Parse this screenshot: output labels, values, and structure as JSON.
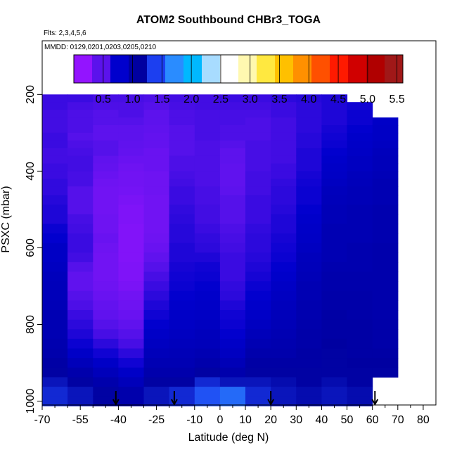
{
  "header": {
    "title": "ATOM2 Southbound CHBr3_TOGA",
    "flights_note": "Flts: 2,3,4,5,6",
    "dates_note": "MMDD: 0129,0201,0203,0205,0210"
  },
  "chart_data": {
    "type": "heatmap",
    "title": "ATOM2 Southbound CHBr3_TOGA",
    "xlabel": "Latitude (deg N)",
    "ylabel": "PSXC (mbar)",
    "xlim": [
      -70,
      85
    ],
    "ylim": [
      1010,
      60
    ],
    "y_reversed": true,
    "x_ticks": [
      -70,
      -55,
      -40,
      -25,
      -10,
      0,
      10,
      20,
      30,
      40,
      50,
      60,
      70,
      80
    ],
    "x_tick_labels": [
      "-70",
      "-55",
      "-40",
      "-25",
      "-10",
      "0",
      "10",
      "20",
      "30",
      "40",
      "50",
      "60",
      "70",
      "80"
    ],
    "x_minor_ticks": [
      -65,
      -60,
      -50,
      -45,
      -35,
      -30,
      -20,
      -15,
      -5,
      5,
      15,
      25,
      35,
      45,
      55,
      65,
      75
    ],
    "y_ticks": [
      200,
      400,
      600,
      800,
      1000
    ],
    "y_tick_labels": [
      "200",
      "400",
      "600",
      "800",
      "1000"
    ],
    "colorbar": {
      "range": [
        0,
        5.6
      ],
      "tick_values": [
        0.5,
        1.0,
        1.5,
        2.0,
        2.5,
        3.0,
        3.5,
        4.0,
        4.5,
        5.0,
        5.5
      ],
      "tick_labels": [
        "0.5",
        "1.0",
        "1.5",
        "2.0",
        "2.5",
        "3.0",
        "3.5",
        "4.0",
        "4.5",
        "5.0",
        "5.5"
      ],
      "colors": [
        "#9314ff",
        "#5b12ec",
        "#0000cd",
        "#0000a0",
        "#1c3ff0",
        "#2a8cff",
        "#00b8ff",
        "#a8dcff",
        "#ffffff",
        "#fff8b0",
        "#ffe840",
        "#ffc000",
        "#ff9000",
        "#ff5000",
        "#ff1a00",
        "#d00000",
        "#b00000",
        "#a01818"
      ]
    },
    "pressure_levels": [
      210,
      230,
      250,
      270,
      290,
      310,
      330,
      350,
      370,
      390,
      410,
      430,
      450,
      475,
      500,
      525,
      550,
      575,
      600,
      625,
      650,
      675,
      700,
      725,
      750,
      775,
      800,
      825,
      850,
      875,
      900,
      925,
      950,
      975,
      1000
    ],
    "series": [
      {
        "latitude_band": [
          -70,
          -60
        ],
        "values": [
          0.45,
          0.45,
          0.42,
          0.42,
          0.42,
          0.45,
          0.45,
          0.42,
          0.42,
          0.45,
          0.45,
          0.48,
          0.48,
          0.52,
          0.55,
          0.55,
          0.62,
          0.65,
          0.72,
          0.72,
          0.75,
          0.78,
          0.8,
          0.8,
          0.82,
          0.85,
          0.85,
          0.85,
          0.88,
          0.9,
          0.95,
          1.0,
          1.1,
          1.2,
          1.2
        ]
      },
      {
        "latitude_band": [
          -60,
          -50
        ],
        "values": [
          0.45,
          0.4,
          0.38,
          0.38,
          0.38,
          0.35,
          0.38,
          0.4,
          0.42,
          0.42,
          0.4,
          0.4,
          0.35,
          0.35,
          0.35,
          0.4,
          0.42,
          0.45,
          0.45,
          0.42,
          0.35,
          0.3,
          0.3,
          0.35,
          0.38,
          0.45,
          0.5,
          0.55,
          0.62,
          0.7,
          0.8,
          0.9,
          1.0,
          1.1,
          1.1
        ]
      },
      {
        "latitude_band": [
          -50,
          -40
        ],
        "values": [
          0.4,
          0.38,
          0.35,
          0.35,
          0.32,
          0.32,
          0.35,
          0.35,
          0.3,
          0.28,
          0.25,
          0.22,
          0.2,
          0.2,
          0.2,
          0.22,
          0.22,
          0.25,
          0.22,
          0.2,
          0.2,
          0.2,
          0.22,
          0.25,
          0.28,
          0.3,
          0.35,
          0.4,
          0.5,
          0.6,
          0.7,
          0.8,
          0.9,
          1.0,
          1.0
        ]
      },
      {
        "latitude_band": [
          -40,
          -30
        ],
        "values": [
          0.4,
          0.38,
          0.38,
          0.35,
          0.32,
          0.32,
          0.3,
          0.28,
          0.25,
          0.22,
          0.2,
          0.2,
          0.18,
          0.15,
          0.12,
          0.12,
          0.1,
          0.1,
          0.1,
          0.1,
          0.12,
          0.12,
          0.15,
          0.2,
          0.22,
          0.25,
          0.3,
          0.35,
          0.4,
          0.5,
          0.6,
          0.7,
          0.8,
          0.9,
          0.9
        ]
      },
      {
        "latitude_band": [
          -30,
          -20
        ],
        "values": [
          0.38,
          0.35,
          0.32,
          0.32,
          0.3,
          0.28,
          0.28,
          0.25,
          0.25,
          0.25,
          0.22,
          0.22,
          0.22,
          0.2,
          0.2,
          0.2,
          0.2,
          0.22,
          0.25,
          0.3,
          0.35,
          0.4,
          0.45,
          0.5,
          0.55,
          0.6,
          0.65,
          0.7,
          0.75,
          0.8,
          0.85,
          0.9,
          1.0,
          1.1,
          1.1
        ]
      },
      {
        "latitude_band": [
          -20,
          -10
        ],
        "values": [
          0.42,
          0.4,
          0.38,
          0.38,
          0.35,
          0.35,
          0.35,
          0.35,
          0.38,
          0.38,
          0.4,
          0.42,
          0.45,
          0.45,
          0.48,
          0.5,
          0.52,
          0.52,
          0.55,
          0.55,
          0.58,
          0.6,
          0.62,
          0.65,
          0.68,
          0.7,
          0.72,
          0.75,
          0.78,
          0.82,
          0.85,
          0.9,
          1.0,
          1.2,
          1.2
        ]
      },
      {
        "latitude_band": [
          -10,
          0
        ],
        "values": [
          0.42,
          0.42,
          0.4,
          0.4,
          0.4,
          0.4,
          0.38,
          0.38,
          0.38,
          0.38,
          0.38,
          0.38,
          0.4,
          0.4,
          0.42,
          0.42,
          0.45,
          0.48,
          0.5,
          0.55,
          0.6,
          0.62,
          0.65,
          0.68,
          0.7,
          0.72,
          0.75,
          0.78,
          0.8,
          0.85,
          0.9,
          1.0,
          1.2,
          1.4,
          1.4
        ]
      },
      {
        "latitude_band": [
          0,
          10
        ],
        "values": [
          0.45,
          0.42,
          0.4,
          0.4,
          0.38,
          0.38,
          0.35,
          0.32,
          0.32,
          0.3,
          0.3,
          0.3,
          0.32,
          0.35,
          0.35,
          0.35,
          0.38,
          0.4,
          0.42,
          0.45,
          0.45,
          0.45,
          0.48,
          0.5,
          0.55,
          0.6,
          0.62,
          0.65,
          0.7,
          0.75,
          0.82,
          0.9,
          1.1,
          1.5,
          1.5
        ]
      },
      {
        "latitude_band": [
          10,
          20
        ],
        "values": [
          0.45,
          0.42,
          0.4,
          0.38,
          0.38,
          0.38,
          0.4,
          0.4,
          0.4,
          0.4,
          0.42,
          0.42,
          0.42,
          0.45,
          0.45,
          0.45,
          0.48,
          0.5,
          0.5,
          0.52,
          0.55,
          0.58,
          0.62,
          0.65,
          0.68,
          0.7,
          0.75,
          0.8,
          0.85,
          0.9,
          0.95,
          1.0,
          1.1,
          1.2,
          1.2
        ]
      },
      {
        "latitude_band": [
          20,
          30
        ],
        "values": [
          0.5,
          0.45,
          0.45,
          0.42,
          0.42,
          0.42,
          0.42,
          0.42,
          0.42,
          0.45,
          0.45,
          0.48,
          0.5,
          0.5,
          0.52,
          0.55,
          0.55,
          0.58,
          0.6,
          0.62,
          0.65,
          0.68,
          0.72,
          0.75,
          0.78,
          0.8,
          0.82,
          0.85,
          0.88,
          0.9,
          0.95,
          1.0,
          1.05,
          1.1,
          1.1
        ]
      },
      {
        "latitude_band": [
          30,
          40
        ],
        "values": [
          0.52,
          0.5,
          0.5,
          0.5,
          0.5,
          0.52,
          0.52,
          0.55,
          0.55,
          0.55,
          0.58,
          0.6,
          0.62,
          0.62,
          0.65,
          0.68,
          0.7,
          0.72,
          0.75,
          0.78,
          0.8,
          0.82,
          0.85,
          0.85,
          0.88,
          0.88,
          0.9,
          0.92,
          0.92,
          0.95,
          0.95,
          1.0,
          1.0,
          1.05,
          1.05
        ]
      },
      {
        "latitude_band": [
          40,
          50
        ],
        "values": [
          0.55,
          0.55,
          0.55,
          0.55,
          0.58,
          0.6,
          0.62,
          0.65,
          0.68,
          0.7,
          0.72,
          0.75,
          0.78,
          0.8,
          0.82,
          0.82,
          0.85,
          0.85,
          0.85,
          0.85,
          0.88,
          0.9,
          0.9,
          0.92,
          0.92,
          0.95,
          0.95,
          0.95,
          0.98,
          1.0,
          1.0,
          1.0,
          1.05,
          1.1,
          1.1
        ]
      },
      {
        "latitude_band": [
          50,
          60
        ],
        "values": [
          null,
          0.6,
          0.62,
          0.62,
          0.65,
          0.68,
          0.7,
          0.72,
          0.75,
          0.75,
          0.78,
          0.8,
          0.82,
          0.82,
          0.85,
          0.85,
          0.85,
          0.85,
          0.88,
          0.88,
          0.88,
          0.9,
          0.9,
          0.92,
          0.92,
          0.92,
          0.95,
          0.95,
          0.95,
          0.95,
          0.98,
          1.0,
          1.0,
          1.05,
          1.05
        ]
      },
      {
        "latitude_band": [
          60,
          70
        ],
        "values": [
          null,
          null,
          null,
          0.7,
          0.72,
          0.72,
          0.75,
          0.78,
          0.8,
          0.8,
          0.82,
          0.85,
          0.85,
          0.85,
          0.88,
          0.88,
          0.88,
          0.88,
          0.9,
          0.9,
          0.9,
          0.9,
          0.9,
          0.9,
          0.9,
          0.9,
          0.92,
          0.92,
          0.92,
          0.95,
          0.98,
          1.0,
          null,
          null,
          null
        ]
      }
    ],
    "arrow_latitudes": [
      -41,
      -18,
      20,
      61
    ]
  }
}
